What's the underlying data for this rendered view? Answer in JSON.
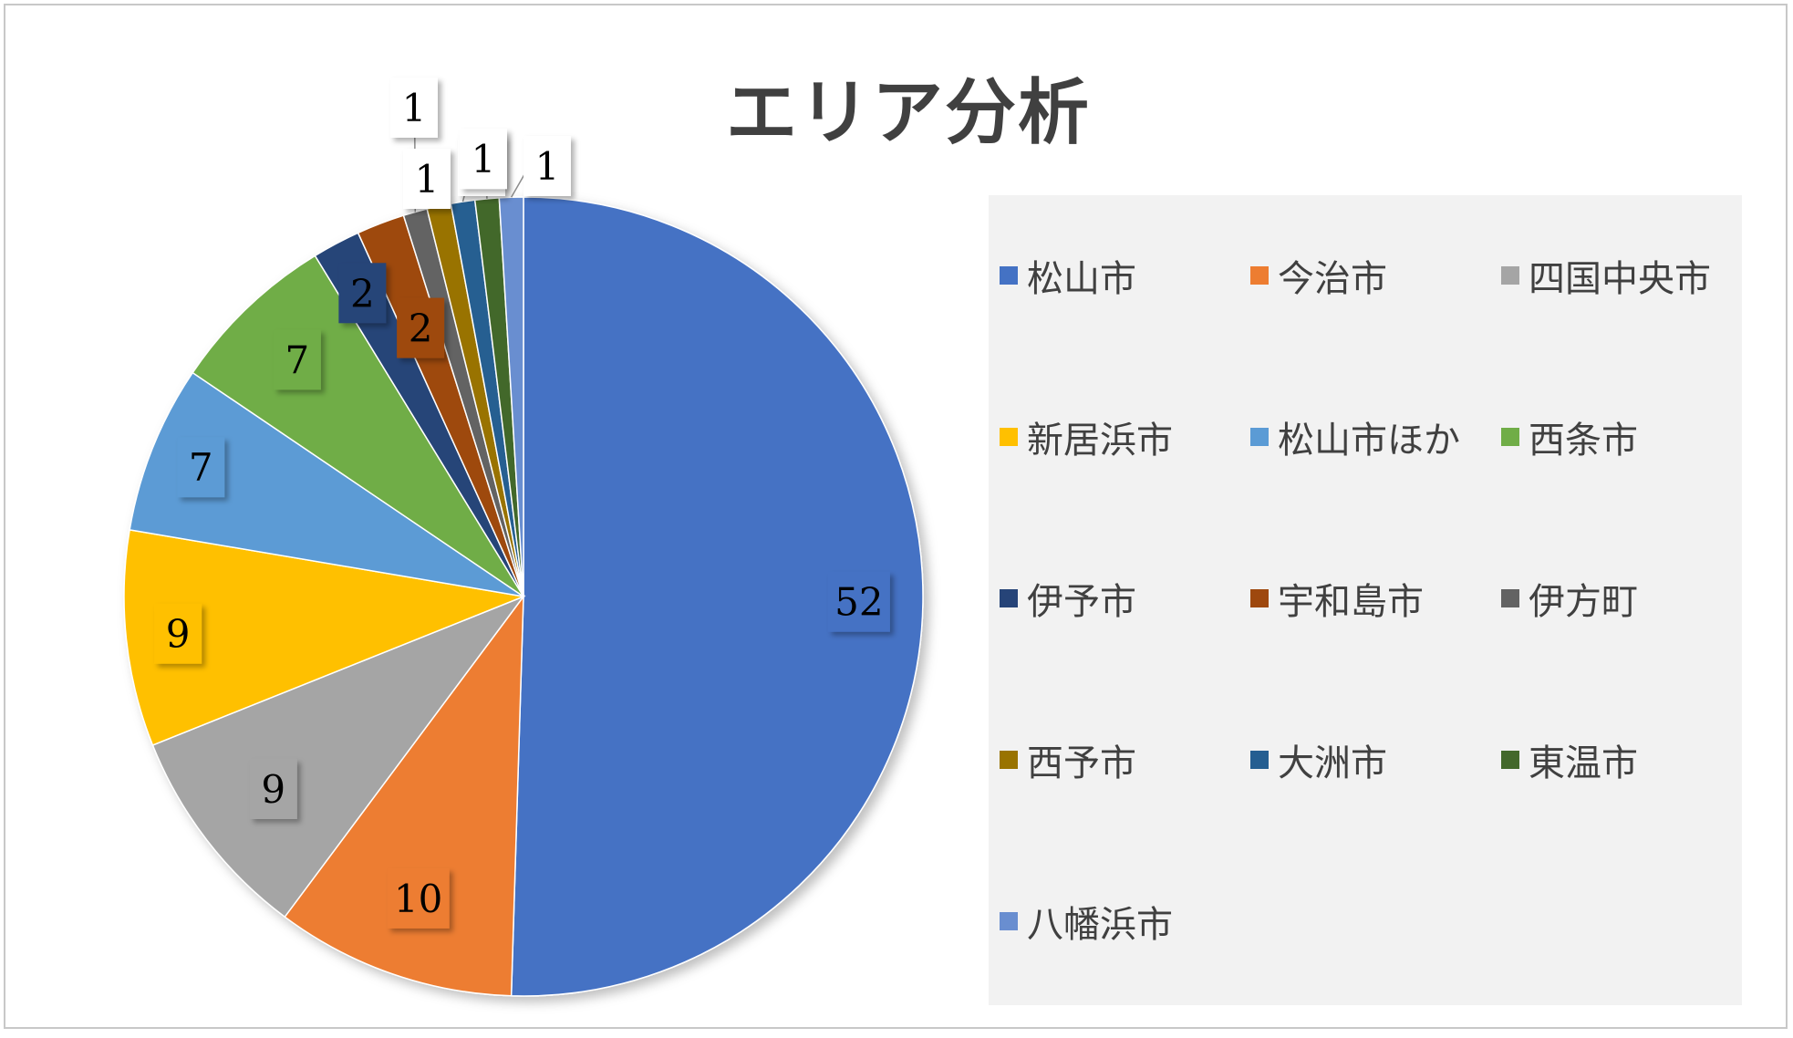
{
  "chart_data": {
    "type": "pie",
    "title": "エリア分析",
    "categories": [
      "松山市",
      "今治市",
      "四国中央市",
      "新居浜市",
      "松山市ほか",
      "西条市",
      "伊予市",
      "宇和島市",
      "伊方町",
      "西予市",
      "大洲市",
      "東温市",
      "八幡浜市"
    ],
    "values": [
      52,
      10,
      9,
      9,
      7,
      7,
      2,
      2,
      1,
      1,
      1,
      1,
      1
    ],
    "colors": [
      "#4472c4",
      "#ed7d31",
      "#a5a5a5",
      "#ffc000",
      "#5b9bd5",
      "#70ad47",
      "#264478",
      "#9e480e",
      "#636363",
      "#997300",
      "#255e91",
      "#43682b",
      "#698ed0"
    ],
    "legend_position": "right",
    "data_labels": true
  }
}
